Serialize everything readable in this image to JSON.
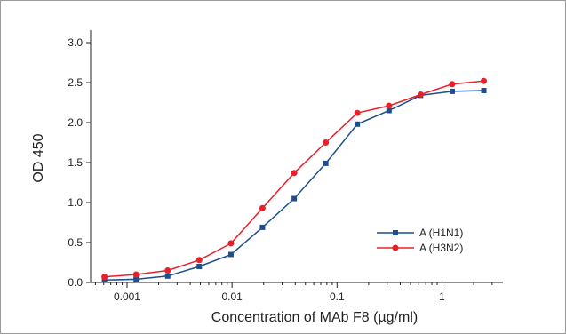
{
  "chart_data": {
    "type": "line",
    "title": "",
    "xlabel": "Concentration of MAb F8 (µg/ml)",
    "ylabel": "OD 450",
    "x_scale": "log",
    "xlim": [
      0.00045,
      3.8
    ],
    "ylim": [
      0,
      3.2
    ],
    "x_ticks": [
      {
        "value": 0.001,
        "label": "0.001"
      },
      {
        "value": 0.01,
        "label": "0.01"
      },
      {
        "value": 0.1,
        "label": "0.1"
      },
      {
        "value": 1,
        "label": "1"
      }
    ],
    "y_ticks": [
      {
        "value": 0.0,
        "label": "0.0"
      },
      {
        "value": 0.5,
        "label": "0.5"
      },
      {
        "value": 1.0,
        "label": "1.0"
      },
      {
        "value": 1.5,
        "label": "1.5"
      },
      {
        "value": 2.0,
        "label": "2.0"
      },
      {
        "value": 2.5,
        "label": "2.5"
      },
      {
        "value": 3.0,
        "label": "3.0"
      }
    ],
    "grid": false,
    "legend_position": "right",
    "x": [
      0.00061,
      0.00122,
      0.00244,
      0.00488,
      0.00977,
      0.0195,
      0.0391,
      0.0781,
      0.156,
      0.3125,
      0.625,
      1.25,
      2.5
    ],
    "series": [
      {
        "name": "A (H1N1)",
        "color": "#1f4e8c",
        "marker": "square",
        "values": [
          0.03,
          0.04,
          0.08,
          0.2,
          0.35,
          0.69,
          1.05,
          1.49,
          1.98,
          2.15,
          2.34,
          2.39,
          2.4
        ]
      },
      {
        "name": "A (H3N2)",
        "color": "#e8202a",
        "marker": "circle",
        "values": [
          0.07,
          0.1,
          0.15,
          0.28,
          0.49,
          0.93,
          1.37,
          1.75,
          2.12,
          2.21,
          2.35,
          2.48,
          2.52
        ]
      }
    ]
  }
}
